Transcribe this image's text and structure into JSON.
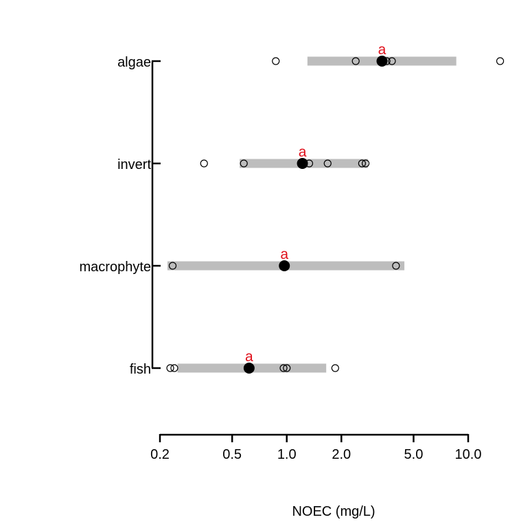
{
  "chart_data": {
    "type": "scatter",
    "title": "",
    "xlabel": "NOEC (mg/L)",
    "ylabel": "",
    "xscale": "log",
    "xlim": [
      0.2,
      10.0
    ],
    "xticks": [
      0.2,
      0.5,
      1.0,
      2.0,
      5.0,
      10.0
    ],
    "xtick_labels": [
      "0.2",
      "0.5",
      "1.0",
      "2.0",
      "5.0",
      "10.0"
    ],
    "grid": false,
    "legend": "none",
    "colors": {
      "range_bar": "#bdbdbd",
      "mean_point": "#000000",
      "observation_point_stroke": "#000000",
      "significance_letter": "#e0101b"
    },
    "categories": [
      "algae",
      "invert",
      "macrophyte",
      "fish"
    ],
    "groups": [
      {
        "name": "algae",
        "range": [
          1.3,
          8.6
        ],
        "mean": 3.35,
        "letter": "a",
        "observations": [
          0.87,
          2.4,
          3.55,
          3.8,
          15.0
        ]
      },
      {
        "name": "invert",
        "range": [
          0.55,
          2.8
        ],
        "mean": 1.22,
        "letter": "a",
        "observations": [
          0.35,
          0.58,
          1.33,
          1.68,
          2.6,
          2.72
        ]
      },
      {
        "name": "macrophyte",
        "range": [
          0.22,
          4.45
        ],
        "mean": 0.97,
        "letter": "a",
        "observations": [
          0.235,
          4.0
        ]
      },
      {
        "name": "fish",
        "range": [
          0.25,
          1.65
        ],
        "mean": 0.62,
        "letter": "a",
        "observations": [
          0.228,
          0.24,
          0.96,
          1.0,
          1.85
        ]
      }
    ]
  }
}
